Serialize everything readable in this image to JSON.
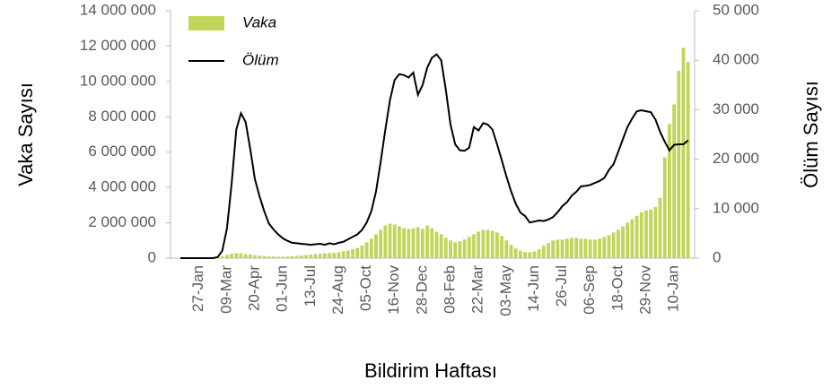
{
  "chart_data": {
    "type": "bar_line",
    "x_label": "Bildirim Haftası",
    "y_label": "Vaka Sayısı",
    "y2_label": "Ölüm Sayısı",
    "categories": [
      null,
      null,
      null,
      null,
      "27-Jan",
      null,
      null,
      null,
      null,
      null,
      "09-Mar",
      null,
      null,
      null,
      null,
      null,
      "20-Apr",
      null,
      null,
      null,
      null,
      null,
      "01-Jun",
      null,
      null,
      null,
      null,
      null,
      "13-Jul",
      null,
      null,
      null,
      null,
      null,
      "24-Aug",
      null,
      null,
      null,
      null,
      null,
      "05-Oct",
      null,
      null,
      null,
      null,
      null,
      "16-Nov",
      null,
      null,
      null,
      null,
      null,
      "28-Dec",
      null,
      null,
      null,
      null,
      null,
      "08-Feb",
      null,
      null,
      null,
      null,
      null,
      "22-Mar",
      null,
      null,
      null,
      null,
      null,
      "03-May",
      null,
      null,
      null,
      null,
      null,
      "14-Jun",
      null,
      null,
      null,
      null,
      null,
      "26-Jul",
      null,
      null,
      null,
      null,
      null,
      "06-Sep",
      null,
      null,
      null,
      null,
      null,
      "18-Oct",
      null,
      null,
      null,
      null,
      null,
      "29-Nov",
      null,
      null,
      null,
      null,
      null,
      "10-Jan",
      null,
      null,
      null
    ],
    "series": [
      {
        "name": "Vaka",
        "color": "#bfd65a",
        "kind": "bar",
        "axis": "y",
        "values": [
          0,
          0,
          0,
          0,
          0,
          0,
          0,
          10000,
          40000,
          100000,
          180000,
          250000,
          280000,
          270000,
          230000,
          200000,
          170000,
          140000,
          120000,
          100000,
          90000,
          80000,
          80000,
          90000,
          110000,
          130000,
          150000,
          170000,
          200000,
          230000,
          250000,
          270000,
          280000,
          300000,
          330000,
          380000,
          430000,
          500000,
          580000,
          720000,
          900000,
          1100000,
          1350000,
          1600000,
          1850000,
          1950000,
          1900000,
          1800000,
          1700000,
          1650000,
          1700000,
          1750000,
          1650000,
          1850000,
          1700000,
          1500000,
          1350000,
          1150000,
          1000000,
          900000,
          950000,
          1050000,
          1200000,
          1350000,
          1500000,
          1600000,
          1600000,
          1550000,
          1450000,
          1250000,
          1000000,
          750000,
          550000,
          420000,
          350000,
          330000,
          380000,
          500000,
          700000,
          850000,
          1000000,
          1050000,
          1050000,
          1100000,
          1150000,
          1150000,
          1100000,
          1100000,
          1050000,
          1050000,
          1100000,
          1200000,
          1300000,
          1450000,
          1600000,
          1800000,
          2000000,
          2200000,
          2400000,
          2600000,
          2700000,
          2750000,
          2900000,
          3400000,
          5700000,
          7600000,
          8700000,
          10600000,
          11900000,
          11100000
        ]
      },
      {
        "name": "Ölüm",
        "color": "#000000",
        "kind": "line",
        "axis": "y2",
        "values": [
          0,
          0,
          0,
          0,
          0,
          0,
          0,
          0,
          200,
          1500,
          6000,
          15000,
          26000,
          29300,
          27500,
          22000,
          16000,
          12500,
          9500,
          7000,
          5800,
          4800,
          4000,
          3500,
          3100,
          3000,
          2900,
          2800,
          2700,
          2800,
          2900,
          2700,
          3000,
          2800,
          3100,
          3300,
          3800,
          4300,
          4800,
          5700,
          7200,
          9500,
          13500,
          19500,
          26000,
          32000,
          36000,
          37200,
          37000,
          36500,
          37500,
          33000,
          35000,
          38500,
          40500,
          41200,
          40000,
          34000,
          27000,
          23000,
          21800,
          21700,
          22300,
          26500,
          25800,
          27300,
          27000,
          26000,
          23000,
          19800,
          16500,
          13500,
          11000,
          9200,
          8500,
          7200,
          7400,
          7600,
          7500,
          7800,
          8300,
          9300,
          10500,
          11300,
          12600,
          13400,
          14500,
          14600,
          14800,
          15200,
          15600,
          16200,
          17800,
          19000,
          21500,
          24000,
          26500,
          28200,
          29700,
          29900,
          29700,
          29500,
          28000,
          25500,
          23500,
          21800,
          22900,
          23000,
          23000,
          23800
        ]
      }
    ],
    "ylim": [
      0,
      14000000
    ],
    "yticks": [
      0,
      {
        "value": 2000000,
        "label": "2 000 000"
      },
      {
        "value": 4000000,
        "label": "4 000 000"
      },
      {
        "value": 6000000,
        "label": "6 000 000"
      },
      {
        "value": 8000000,
        "label": "8 000 000"
      },
      {
        "value": 10000000,
        "label": "10 000 000"
      },
      {
        "value": 12000000,
        "label": "12 000 000"
      },
      {
        "value": 14000000,
        "label": "14 000 000"
      }
    ],
    "y2lim": [
      0,
      50000
    ],
    "y2ticks": [
      0,
      {
        "value": 10000,
        "label": "10 000"
      },
      {
        "value": 20000,
        "label": "20 000"
      },
      {
        "value": 30000,
        "label": "30 000"
      },
      {
        "value": 40000,
        "label": "40 000"
      },
      {
        "value": 50000,
        "label": "50 000"
      }
    ],
    "legend": "top-left"
  }
}
